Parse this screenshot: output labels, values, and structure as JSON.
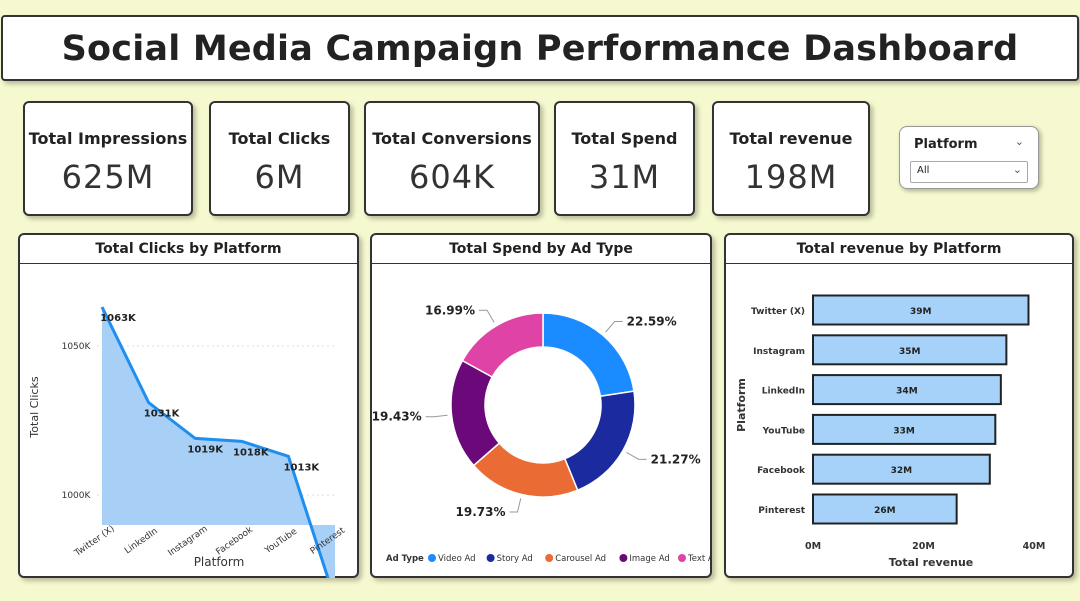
{
  "title": "Social Media Campaign Performance Dashboard",
  "kpis": [
    {
      "label": "Total Impressions",
      "value": "625M"
    },
    {
      "label": "Total Clicks",
      "value": "6M"
    },
    {
      "label": "Total Conversions",
      "value": "604K"
    },
    {
      "label": "Total Spend",
      "value": "31M"
    },
    {
      "label": "Total revenue",
      "value": "198M"
    }
  ],
  "slicer": {
    "title": "Platform",
    "value": "All"
  },
  "colors": {
    "background": "#f6f9cf",
    "area_fill": "#a8d0f7",
    "line": "#1e8ff0",
    "bar_fill": "#a6d1f9"
  },
  "chart_data": [
    {
      "type": "area",
      "title": "Total Clicks by Platform",
      "xlabel": "Platform",
      "ylabel": "Total Clicks",
      "categories": [
        "Twitter (X)",
        "LinkedIn",
        "Instagram",
        "Facebook",
        "YouTube",
        "Pinterest"
      ],
      "values": [
        1063,
        1031,
        1019,
        1018,
        1013,
        965
      ],
      "data_labels": [
        "1063K",
        "1031K",
        "1019K",
        "1018K",
        "1013K",
        ""
      ],
      "yticks": [
        {
          "value": 1000,
          "label": "1000K"
        },
        {
          "value": 1050,
          "label": "1050K"
        }
      ],
      "ylim": [
        990,
        1063
      ]
    },
    {
      "type": "pie",
      "title": "Total Spend by Ad Type",
      "legend_title": "Ad Type",
      "legend_position": "bottom",
      "categories": [
        "Video Ad",
        "Story Ad",
        "Carousel Ad",
        "Image Ad",
        "Text Ad"
      ],
      "values": [
        22.59,
        21.27,
        19.73,
        19.43,
        16.99
      ],
      "labels": [
        "22.59%",
        "21.27%",
        "19.73%",
        "19.43%",
        "16.99%"
      ],
      "colors": [
        "#1a8cff",
        "#1b2a9e",
        "#ea6c34",
        "#6b087a",
        "#e043a6"
      ]
    },
    {
      "type": "bar",
      "orientation": "horizontal",
      "title": "Total revenue by Platform",
      "xlabel": "Total revenue",
      "ylabel": "Platform",
      "categories": [
        "Twitter (X)",
        "Instagram",
        "LinkedIn",
        "YouTube",
        "Facebook",
        "Pinterest"
      ],
      "values": [
        39,
        35,
        34,
        33,
        32,
        26
      ],
      "data_labels": [
        "39M",
        "35M",
        "34M",
        "33M",
        "32M",
        "26M"
      ],
      "xticks": [
        {
          "value": 0,
          "label": "0M"
        },
        {
          "value": 20,
          "label": "20M"
        },
        {
          "value": 40,
          "label": "40M"
        }
      ],
      "xlim": [
        0,
        40
      ]
    }
  ]
}
